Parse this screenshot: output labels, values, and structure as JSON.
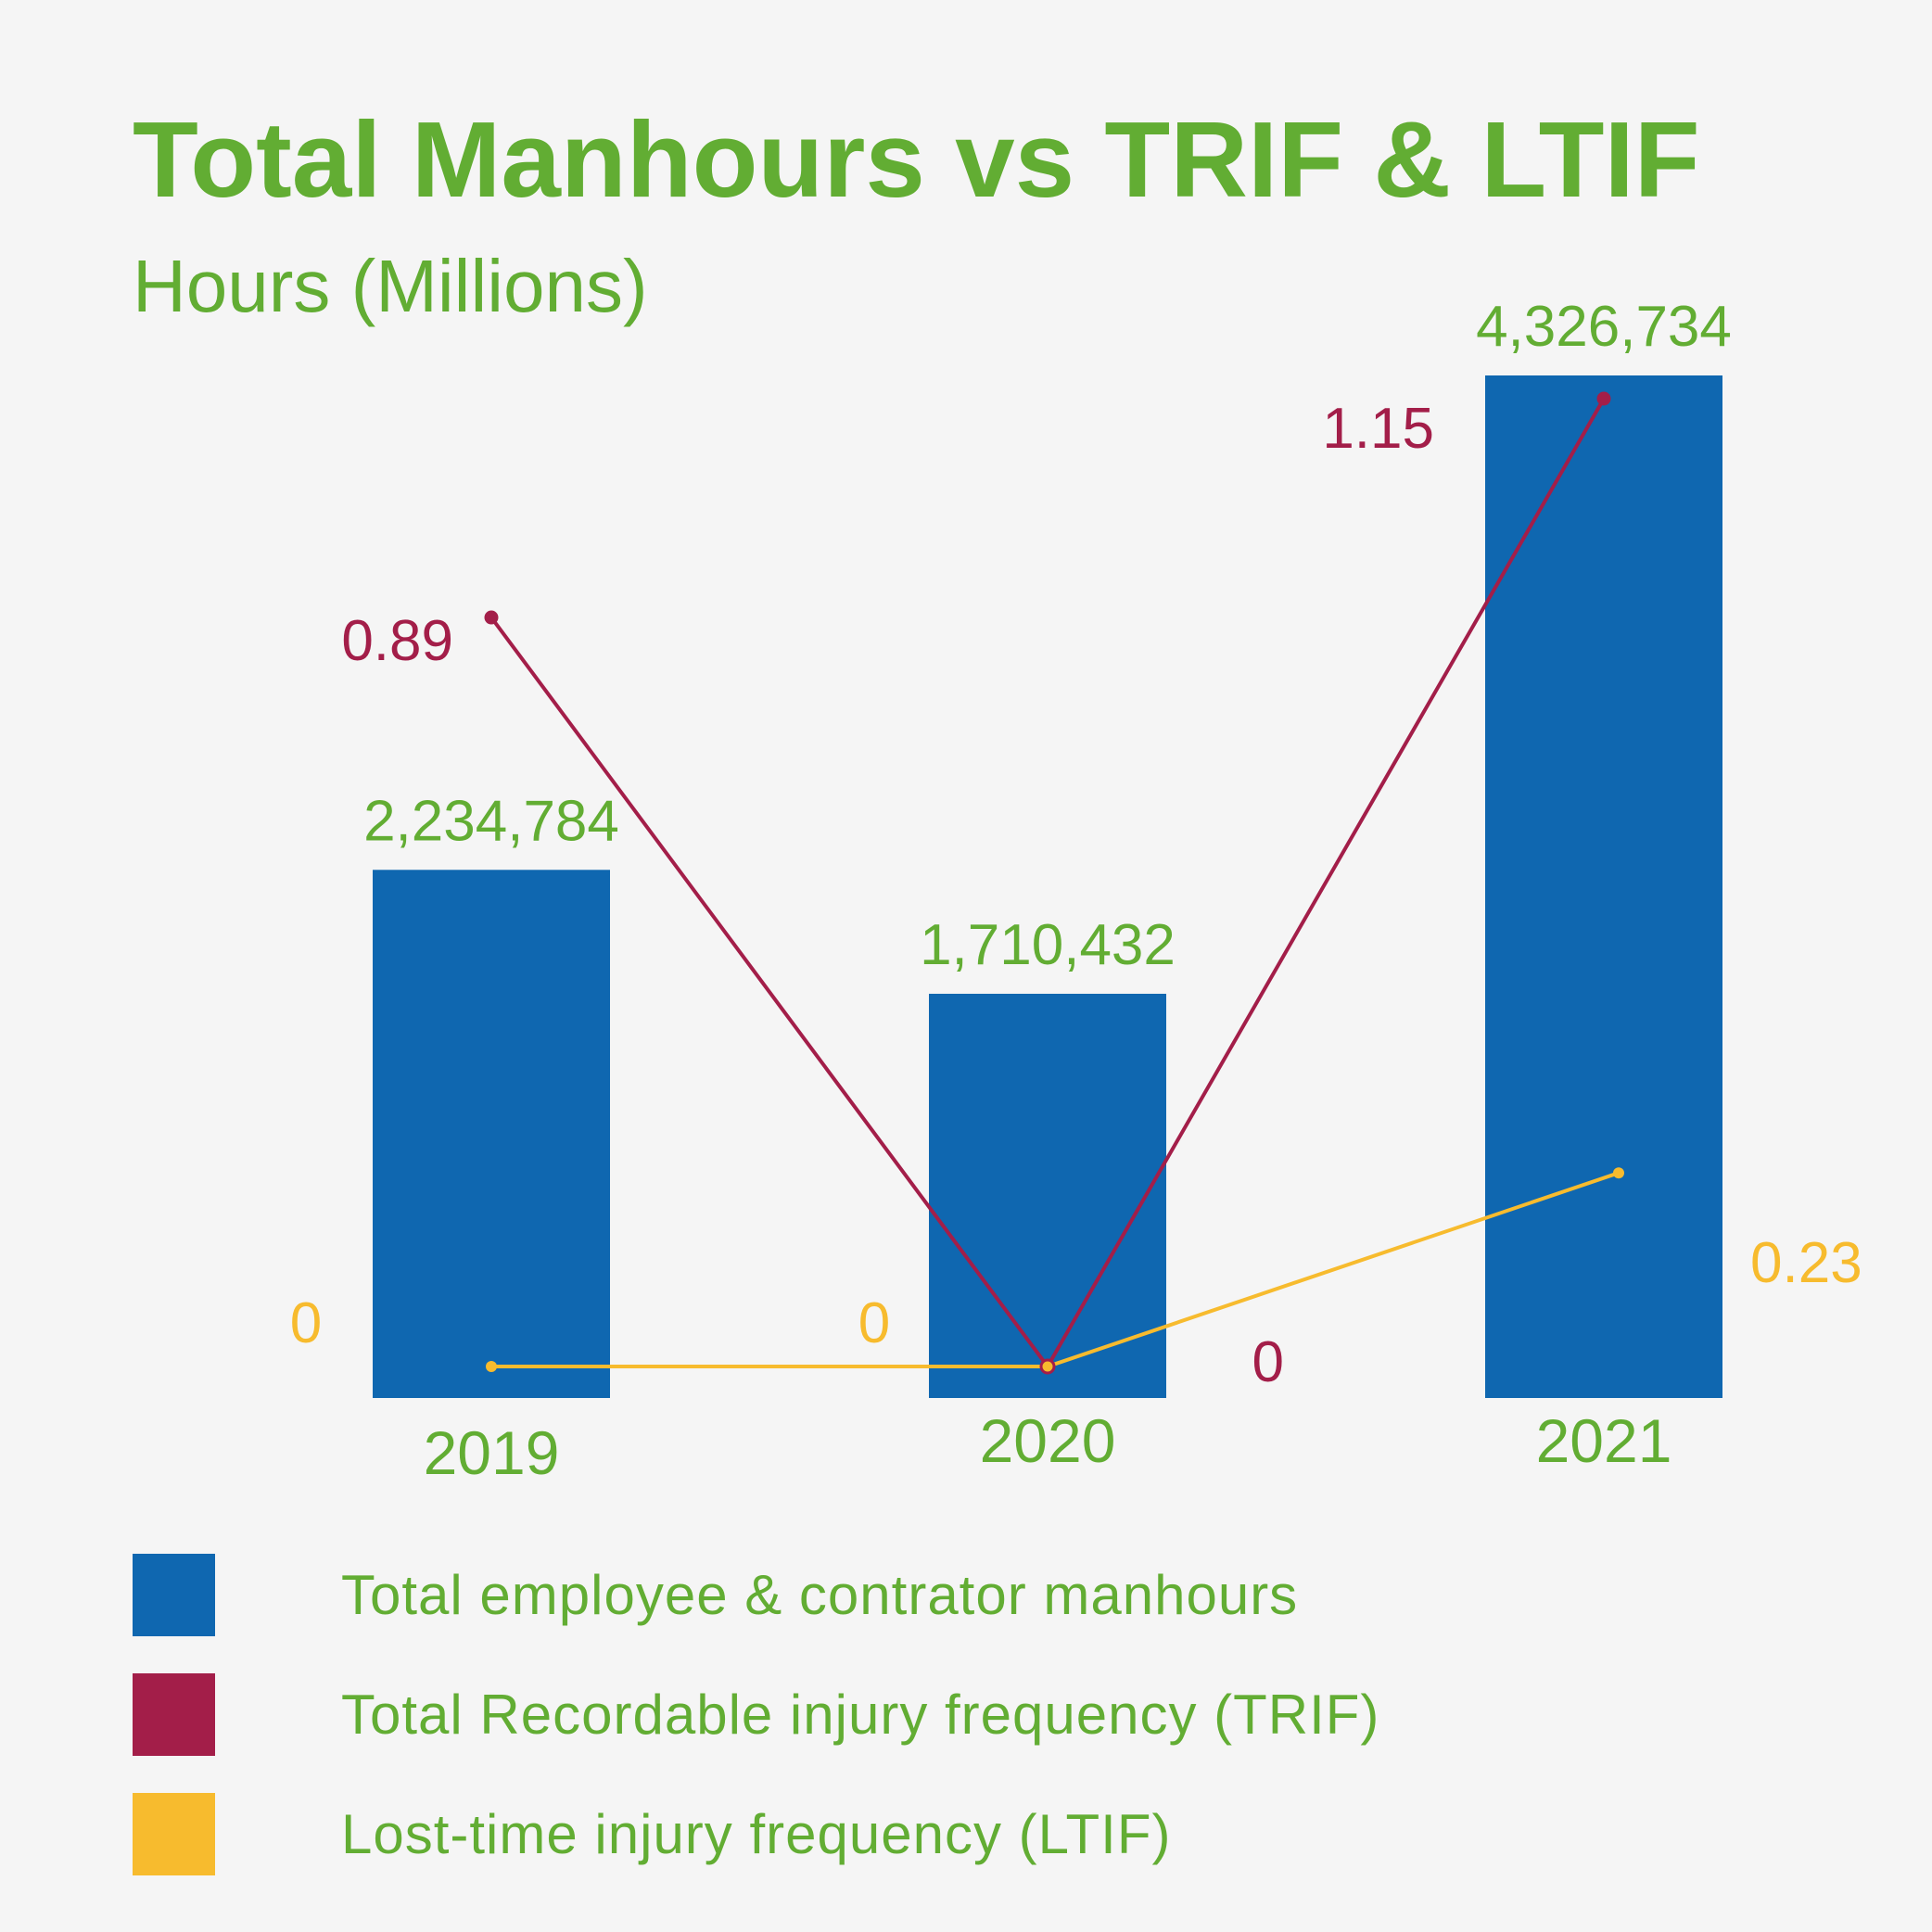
{
  "colors": {
    "background": "#f5f5f5",
    "green_text": "#62ad33",
    "bar_blue": "#0f67b0",
    "trif_crimson": "#a31e49",
    "ltif_yellow": "#f7bb2e"
  },
  "chart_data": {
    "type": "bar",
    "title": "Total Manhours vs TRIF & LTIF",
    "subtitle": "Hours (Millions)",
    "categories": [
      "2019",
      "2020",
      "2021"
    ],
    "grid": false,
    "legend_placement": "bottom",
    "series": [
      {
        "name": "Total employee & contrator manhours",
        "type": "bar",
        "color": "#0f67b0",
        "values": [
          2234784,
          1710432,
          4326734
        ],
        "labels": [
          "2,234,784",
          "1,710,432",
          "4,326,734"
        ]
      },
      {
        "name": "Total Recordable injury frequency (TRIF)",
        "type": "line",
        "color": "#a31e49",
        "values": [
          0.89,
          0,
          1.15
        ],
        "labels": [
          "0.89",
          "0",
          "1.15"
        ]
      },
      {
        "name": "Lost-time injury frequency (LTIF)",
        "type": "line",
        "color": "#f7bb2e",
        "values": [
          0,
          0,
          0.23
        ],
        "labels": [
          "0",
          "0",
          "0.23"
        ]
      }
    ]
  }
}
